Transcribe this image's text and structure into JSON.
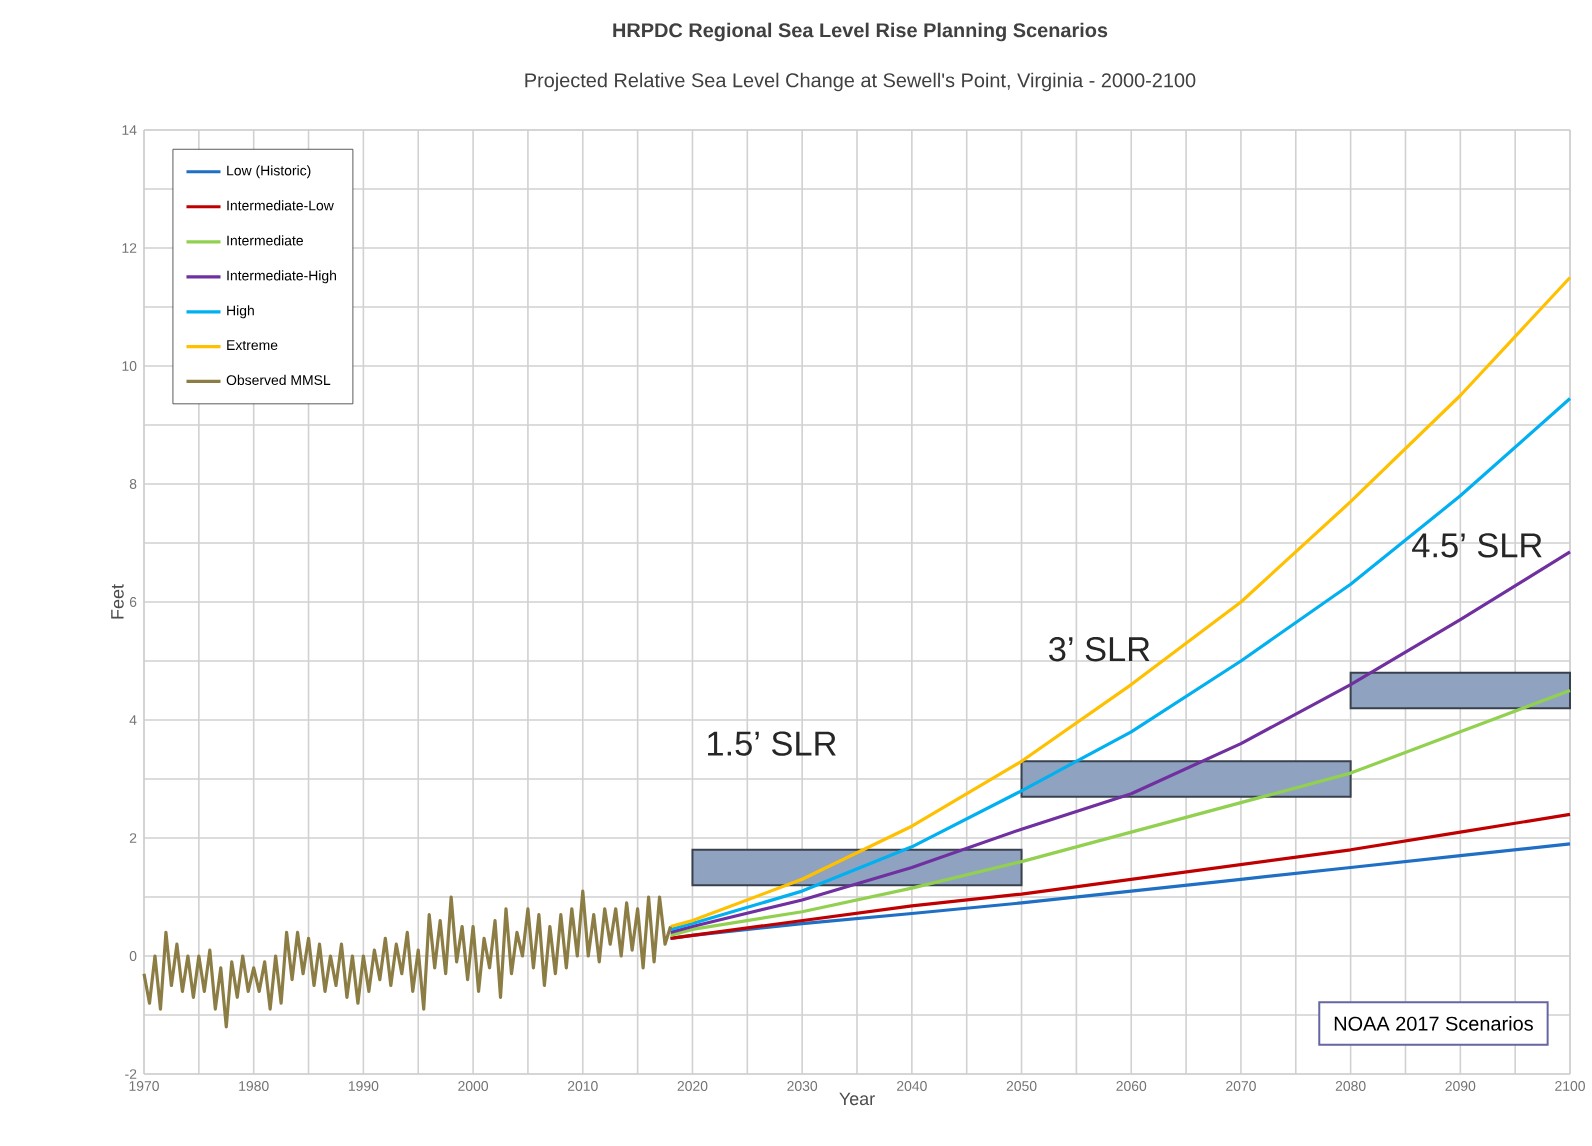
{
  "chart_data": {
    "type": "line",
    "title": "HRPDC Regional Sea Level Rise Planning Scenarios",
    "subtitle": "Projected Relative Sea Level Change at Sewell's Point, Virginia - 2000-2100",
    "xlabel": "Year",
    "ylabel": "Feet",
    "xlim": [
      1970,
      2100
    ],
    "ylim": [
      -2,
      14
    ],
    "xticks": [
      1970,
      {
        "value": 1975,
        "label": null
      },
      1980,
      {
        "value": 1985,
        "label": null
      },
      1990,
      {
        "value": 1995,
        "label": null
      },
      2000,
      {
        "value": 2005,
        "label": null
      },
      2010,
      {
        "value": 2015,
        "label": null
      },
      2020,
      {
        "value": 2025,
        "label": null
      },
      2030,
      {
        "value": 2035,
        "label": null
      },
      2040,
      {
        "value": 2045,
        "label": null
      },
      2050,
      {
        "value": 2055,
        "label": null
      },
      2060,
      {
        "value": 2065,
        "label": null
      },
      2070,
      {
        "value": 2075,
        "label": null
      },
      2080,
      {
        "value": 2085,
        "label": null
      },
      2090,
      {
        "value": 2095,
        "label": null
      },
      2100
    ],
    "yticks": [
      -2,
      {
        "value": -1,
        "label": null
      },
      0,
      {
        "value": 1,
        "label": null
      },
      2,
      {
        "value": 3,
        "label": null
      },
      4,
      {
        "value": 5,
        "label": null
      },
      6,
      {
        "value": 7,
        "label": null
      },
      8,
      {
        "value": 9,
        "label": null
      },
      10,
      {
        "value": 11,
        "label": null
      },
      12,
      {
        "value": 13,
        "label": null
      },
      14
    ],
    "grid": true,
    "legend": "top left",
    "series": [
      {
        "name": "Low (Historic)",
        "color": "#1f6fc5",
        "x": [
          2018,
          2020,
          2030,
          2040,
          2050,
          2060,
          2070,
          2080,
          2090,
          2100
        ],
        "values": [
          0.3,
          0.35,
          0.55,
          0.72,
          0.9,
          1.1,
          1.3,
          1.5,
          1.7,
          1.9
        ]
      },
      {
        "name": "Intermediate-Low",
        "color": "#c00000",
        "x": [
          2018,
          2020,
          2030,
          2040,
          2050,
          2060,
          2070,
          2080,
          2090,
          2100
        ],
        "values": [
          0.3,
          0.35,
          0.6,
          0.85,
          1.05,
          1.3,
          1.55,
          1.8,
          2.1,
          2.4
        ]
      },
      {
        "name": "Intermediate",
        "color": "#92d050",
        "x": [
          2018,
          2020,
          2030,
          2040,
          2050,
          2060,
          2070,
          2080,
          2090,
          2100
        ],
        "values": [
          0.35,
          0.45,
          0.75,
          1.15,
          1.6,
          2.1,
          2.6,
          3.1,
          3.8,
          4.5
        ]
      },
      {
        "name": "Intermediate-High",
        "color": "#7030a0",
        "x": [
          2018,
          2020,
          2030,
          2040,
          2050,
          2060,
          2070,
          2080,
          2090,
          2100
        ],
        "values": [
          0.4,
          0.5,
          0.95,
          1.5,
          2.15,
          2.75,
          3.6,
          4.6,
          5.7,
          6.85
        ]
      },
      {
        "name": "High",
        "color": "#00b0f0",
        "x": [
          2018,
          2020,
          2030,
          2040,
          2050,
          2060,
          2070,
          2080,
          2090,
          2100
        ],
        "values": [
          0.45,
          0.55,
          1.1,
          1.85,
          2.8,
          3.8,
          5.0,
          6.3,
          7.8,
          9.45
        ]
      },
      {
        "name": "Extreme",
        "color": "#ffc000",
        "x": [
          2018,
          2020,
          2030,
          2040,
          2050,
          2060,
          2070,
          2080,
          2090,
          2100
        ],
        "values": [
          0.5,
          0.6,
          1.3,
          2.2,
          3.3,
          4.6,
          6.0,
          7.7,
          9.5,
          11.5
        ]
      },
      {
        "name": "Observed MMSL",
        "color": "#8c7d45",
        "x": [
          1970,
          1970.5,
          1971,
          1971.5,
          1972,
          1972.5,
          1973,
          1973.5,
          1974,
          1974.5,
          1975,
          1975.5,
          1976,
          1976.5,
          1977,
          1977.5,
          1978,
          1978.5,
          1979,
          1979.5,
          1980,
          1980.5,
          1981,
          1981.5,
          1982,
          1982.5,
          1983,
          1983.5,
          1984,
          1984.5,
          1985,
          1985.5,
          1986,
          1986.5,
          1987,
          1987.5,
          1988,
          1988.5,
          1989,
          1989.5,
          1990,
          1990.5,
          1991,
          1991.5,
          1992,
          1992.5,
          1993,
          1993.5,
          1994,
          1994.5,
          1995,
          1995.5,
          1996,
          1996.5,
          1997,
          1997.5,
          1998,
          1998.5,
          1999,
          1999.5,
          2000,
          2000.5,
          2001,
          2001.5,
          2002,
          2002.5,
          2003,
          2003.5,
          2004,
          2004.5,
          2005,
          2005.5,
          2006,
          2006.5,
          2007,
          2007.5,
          2008,
          2008.5,
          2009,
          2009.5,
          2010,
          2010.5,
          2011,
          2011.5,
          2012,
          2012.5,
          2013,
          2013.5,
          2014,
          2014.5,
          2015,
          2015.5,
          2016,
          2016.5,
          2017,
          2017.5,
          2018
        ],
        "values": [
          -0.3,
          -0.8,
          0.0,
          -0.9,
          0.4,
          -0.5,
          0.2,
          -0.6,
          0.0,
          -0.7,
          0.0,
          -0.6,
          0.1,
          -0.9,
          -0.2,
          -1.2,
          -0.1,
          -0.7,
          0.0,
          -0.6,
          -0.2,
          -0.6,
          -0.1,
          -0.9,
          0.0,
          -0.8,
          0.4,
          -0.4,
          0.4,
          -0.3,
          0.3,
          -0.5,
          0.2,
          -0.6,
          0.0,
          -0.5,
          0.2,
          -0.7,
          0.0,
          -0.8,
          0.0,
          -0.6,
          0.1,
          -0.4,
          0.3,
          -0.5,
          0.2,
          -0.3,
          0.4,
          -0.6,
          0.1,
          -0.9,
          0.7,
          -0.2,
          0.6,
          -0.3,
          1.0,
          -0.1,
          0.5,
          -0.4,
          0.5,
          -0.6,
          0.3,
          -0.2,
          0.6,
          -0.7,
          0.8,
          -0.3,
          0.4,
          0.0,
          0.8,
          -0.2,
          0.7,
          -0.5,
          0.5,
          -0.3,
          0.7,
          -0.2,
          0.8,
          0.0,
          1.1,
          0.0,
          0.7,
          -0.1,
          0.8,
          0.2,
          0.8,
          0.0,
          0.9,
          0.1,
          0.8,
          -0.2,
          1.0,
          -0.1,
          1.0,
          0.2,
          0.5
        ]
      },
      {
        "color": "#8fa3c0",
        "x": [
          2020,
          2050
        ],
        "values": [
          null,
          null
        ],
        "lower": [
          1.2,
          1.2
        ],
        "upper": [
          1.8,
          1.8
        ]
      },
      {
        "color": "#8fa3c0",
        "x": [
          2050,
          2080
        ],
        "values": [
          null,
          null
        ],
        "lower": [
          2.7,
          2.7
        ],
        "upper": [
          3.3,
          3.3
        ]
      },
      {
        "color": "#8fa3c0",
        "x": [
          2080,
          2100
        ],
        "values": [
          null,
          null
        ],
        "lower": [
          4.2,
          4.2
        ],
        "upper": [
          4.8,
          4.8
        ]
      }
    ],
    "annotations": [
      "1.5’ SLR",
      "3’ SLR",
      "4.5’ SLR",
      "NOAA 2017 Scenarios"
    ]
  }
}
